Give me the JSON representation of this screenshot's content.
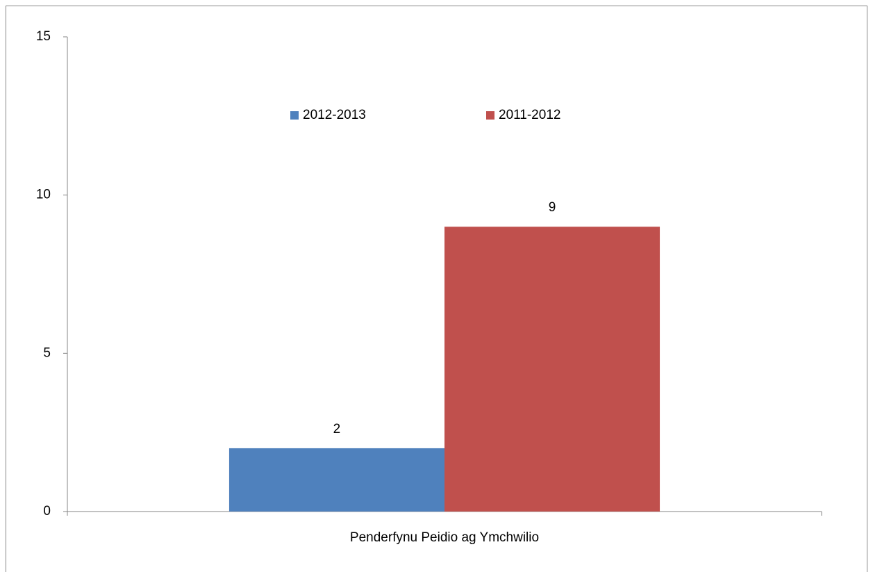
{
  "chart_data": {
    "type": "bar",
    "categories": [
      "Penderfynu Peidio ag Ymchwilio"
    ],
    "series": [
      {
        "name": "2012-2013",
        "color": "#4f81bd",
        "values": [
          2
        ]
      },
      {
        "name": "2011-2012",
        "color": "#c0504d",
        "values": [
          9
        ]
      }
    ],
    "ylim": [
      0,
      15
    ],
    "yticks": [
      0,
      5,
      10,
      15
    ],
    "grid": false,
    "legend": "top",
    "data_labels": true
  }
}
